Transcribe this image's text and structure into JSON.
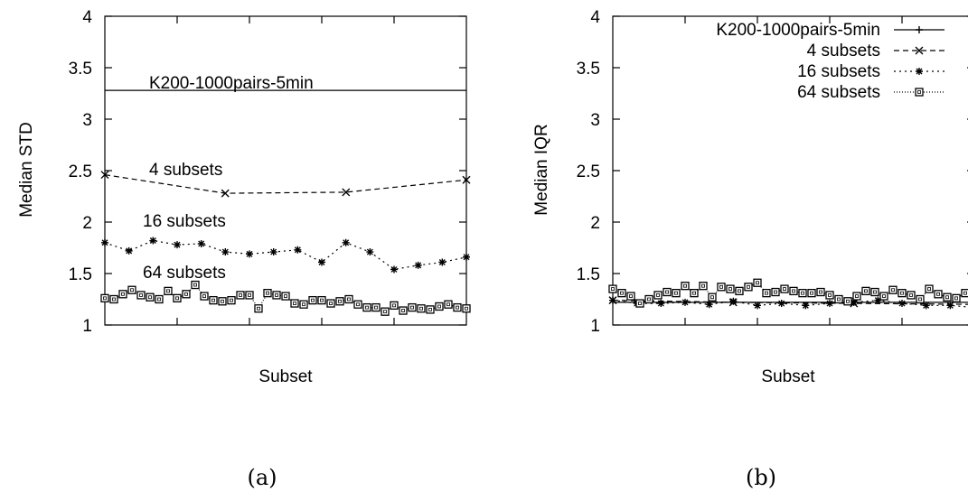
{
  "chart_data": [
    {
      "type": "line",
      "caption": "(a)",
      "xlabel": "Subset",
      "ylabel": "Median STD",
      "ylim": [
        1,
        4
      ],
      "yticks": [
        "1",
        "1.5",
        "2",
        "2.5",
        "3",
        "3.5",
        "4"
      ],
      "legend": "inline labels",
      "series": [
        {
          "name": "K200-1000pairs-5min",
          "marker": "plus",
          "x": [
            0,
            1
          ],
          "values": [
            3.28,
            3.28
          ]
        },
        {
          "name": "4 subsets",
          "marker": "x",
          "x": [
            0,
            0.333,
            0.667,
            1
          ],
          "values": [
            2.46,
            2.28,
            2.29,
            2.41
          ]
        },
        {
          "name": "16 subsets",
          "marker": "star",
          "x": [
            0,
            0.0667,
            0.1333,
            0.2,
            0.2667,
            0.3333,
            0.4,
            0.4667,
            0.5333,
            0.6,
            0.6667,
            0.7333,
            0.8,
            0.8667,
            0.9333,
            1
          ],
          "values": [
            1.8,
            1.72,
            1.82,
            1.78,
            1.79,
            1.71,
            1.69,
            1.71,
            1.73,
            1.61,
            1.8,
            1.71,
            1.54,
            1.58,
            1.61,
            1.66
          ]
        },
        {
          "name": "64 subsets",
          "marker": "square",
          "x": [
            0,
            0.025,
            0.05,
            0.075,
            0.1,
            0.125,
            0.15,
            0.175,
            0.2,
            0.225,
            0.25,
            0.275,
            0.3,
            0.325,
            0.35,
            0.375,
            0.4,
            0.425,
            0.45,
            0.475,
            0.5,
            0.525,
            0.55,
            0.575,
            0.6,
            0.625,
            0.65,
            0.675,
            0.7,
            0.725,
            0.75,
            0.775,
            0.8,
            0.825,
            0.85,
            0.875,
            0.9,
            0.925,
            0.95,
            0.975,
            1
          ],
          "values": [
            1.26,
            1.25,
            1.3,
            1.34,
            1.29,
            1.27,
            1.25,
            1.33,
            1.26,
            1.3,
            1.39,
            1.28,
            1.24,
            1.23,
            1.24,
            1.29,
            1.29,
            1.16,
            1.31,
            1.29,
            1.28,
            1.21,
            1.2,
            1.24,
            1.24,
            1.21,
            1.23,
            1.25,
            1.2,
            1.17,
            1.17,
            1.13,
            1.19,
            1.14,
            1.17,
            1.16,
            1.15,
            1.18,
            1.2,
            1.17,
            1.16
          ]
        }
      ]
    },
    {
      "type": "line",
      "caption": "(b)",
      "xlabel": "Subset",
      "ylabel": "Median IQR",
      "ylim": [
        1,
        4
      ],
      "yticks": [
        "1",
        "1.5",
        "2",
        "2.5",
        "3",
        "3.5",
        "4"
      ],
      "legend": "top-right",
      "series": [
        {
          "name": "K200-1000pairs-5min",
          "marker": "plus",
          "x": [
            0,
            1
          ],
          "values": [
            1.22,
            1.22
          ]
        },
        {
          "name": "4 subsets",
          "marker": "x",
          "x": [
            0,
            0.333,
            0.667,
            1
          ],
          "values": [
            1.24,
            1.22,
            1.21,
            1.2
          ]
        },
        {
          "name": "16 subsets",
          "marker": "star",
          "x": [
            0,
            0.0667,
            0.1333,
            0.2,
            0.2667,
            0.3333,
            0.4,
            0.4667,
            0.5333,
            0.6,
            0.6667,
            0.7333,
            0.8,
            0.8667,
            0.9333,
            1
          ],
          "values": [
            1.24,
            1.21,
            1.21,
            1.22,
            1.2,
            1.23,
            1.19,
            1.21,
            1.19,
            1.21,
            1.22,
            1.24,
            1.21,
            1.19,
            1.19,
            1.17
          ]
        },
        {
          "name": "64 subsets",
          "marker": "square",
          "x": [
            0,
            0.025,
            0.05,
            0.075,
            0.1,
            0.125,
            0.15,
            0.175,
            0.2,
            0.225,
            0.25,
            0.275,
            0.3,
            0.325,
            0.35,
            0.375,
            0.4,
            0.425,
            0.45,
            0.475,
            0.5,
            0.525,
            0.55,
            0.575,
            0.6,
            0.625,
            0.65,
            0.675,
            0.7,
            0.725,
            0.75,
            0.775,
            0.8,
            0.825,
            0.85,
            0.875,
            0.9,
            0.925,
            0.95,
            0.975,
            1
          ],
          "values": [
            1.35,
            1.31,
            1.28,
            1.21,
            1.25,
            1.29,
            1.32,
            1.31,
            1.38,
            1.31,
            1.38,
            1.27,
            1.37,
            1.35,
            1.33,
            1.37,
            1.41,
            1.31,
            1.32,
            1.35,
            1.33,
            1.31,
            1.31,
            1.32,
            1.29,
            1.25,
            1.23,
            1.28,
            1.33,
            1.32,
            1.28,
            1.34,
            1.31,
            1.29,
            1.25,
            1.35,
            1.3,
            1.27,
            1.26,
            1.31,
            1.35
          ]
        }
      ]
    }
  ]
}
